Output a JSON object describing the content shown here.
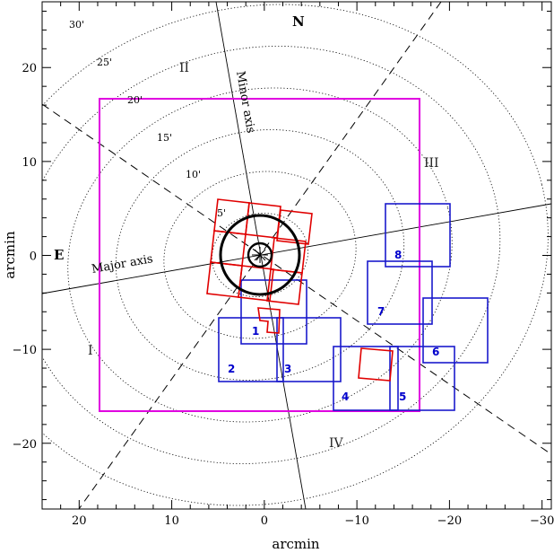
{
  "figure": {
    "xlabel": "arcmin",
    "ylabel": "arcmin",
    "xlim": [
      24,
      -31
    ],
    "ylim": [
      -27,
      27
    ],
    "x_ticks": [
      20,
      10,
      0,
      -10,
      -20,
      -30
    ],
    "y_ticks": [
      20,
      10,
      0,
      -10,
      -20
    ],
    "compass": {
      "north": "N",
      "east": "E"
    },
    "major_axis_label": "Major axis",
    "minor_axis_label": "Minor axis",
    "quadrants": [
      "I",
      "II",
      "III",
      "IV"
    ],
    "ring_labels": [
      "5'",
      "10'",
      "15'",
      "20'",
      "25'",
      "30'"
    ],
    "field_labels": [
      "1",
      "2",
      "3",
      "4",
      "5",
      "6",
      "7",
      "8"
    ],
    "colors": {
      "fields": "#1a1acc",
      "chips": "#e00000",
      "outer_box": "#e000e0",
      "lines": "#000000"
    }
  }
}
